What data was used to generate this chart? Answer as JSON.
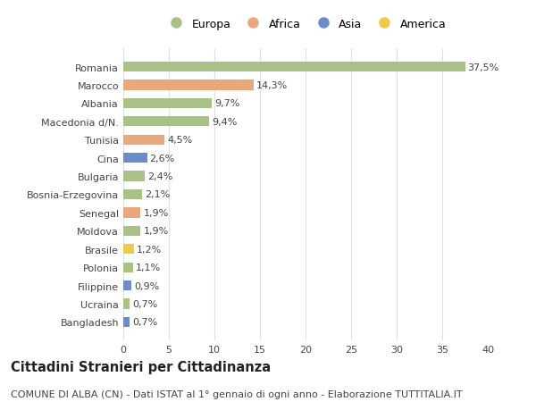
{
  "countries": [
    "Romania",
    "Marocco",
    "Albania",
    "Macedonia d/N.",
    "Tunisia",
    "Cina",
    "Bulgaria",
    "Bosnia-Erzegovina",
    "Senegal",
    "Moldova",
    "Brasile",
    "Polonia",
    "Filippine",
    "Ucraina",
    "Bangladesh"
  ],
  "values": [
    37.5,
    14.3,
    9.7,
    9.4,
    4.5,
    2.6,
    2.4,
    2.1,
    1.9,
    1.9,
    1.2,
    1.1,
    0.9,
    0.7,
    0.7
  ],
  "labels": [
    "37,5%",
    "14,3%",
    "9,7%",
    "9,4%",
    "4,5%",
    "2,6%",
    "2,4%",
    "2,1%",
    "1,9%",
    "1,9%",
    "1,2%",
    "1,1%",
    "0,9%",
    "0,7%",
    "0,7%"
  ],
  "continents": [
    "Europa",
    "Africa",
    "Europa",
    "Europa",
    "Africa",
    "Asia",
    "Europa",
    "Europa",
    "Africa",
    "Europa",
    "America",
    "Europa",
    "Asia",
    "Europa",
    "Asia"
  ],
  "colors": {
    "Europa": "#a8c186",
    "Africa": "#e8a87c",
    "Asia": "#6b8cc7",
    "America": "#f0c84a"
  },
  "legend_order": [
    "Europa",
    "Africa",
    "Asia",
    "America"
  ],
  "xlim": [
    0,
    40
  ],
  "xticks": [
    0,
    5,
    10,
    15,
    20,
    25,
    30,
    35,
    40
  ],
  "background_color": "#ffffff",
  "grid_color": "#e0e0e0",
  "title": "Cittadini Stranieri per Cittadinanza",
  "subtitle": "COMUNE DI ALBA (CN) - Dati ISTAT al 1° gennaio di ogni anno - Elaborazione TUTTITALIA.IT",
  "title_fontsize": 10.5,
  "subtitle_fontsize": 8,
  "label_fontsize": 8,
  "tick_fontsize": 8,
  "legend_fontsize": 9
}
